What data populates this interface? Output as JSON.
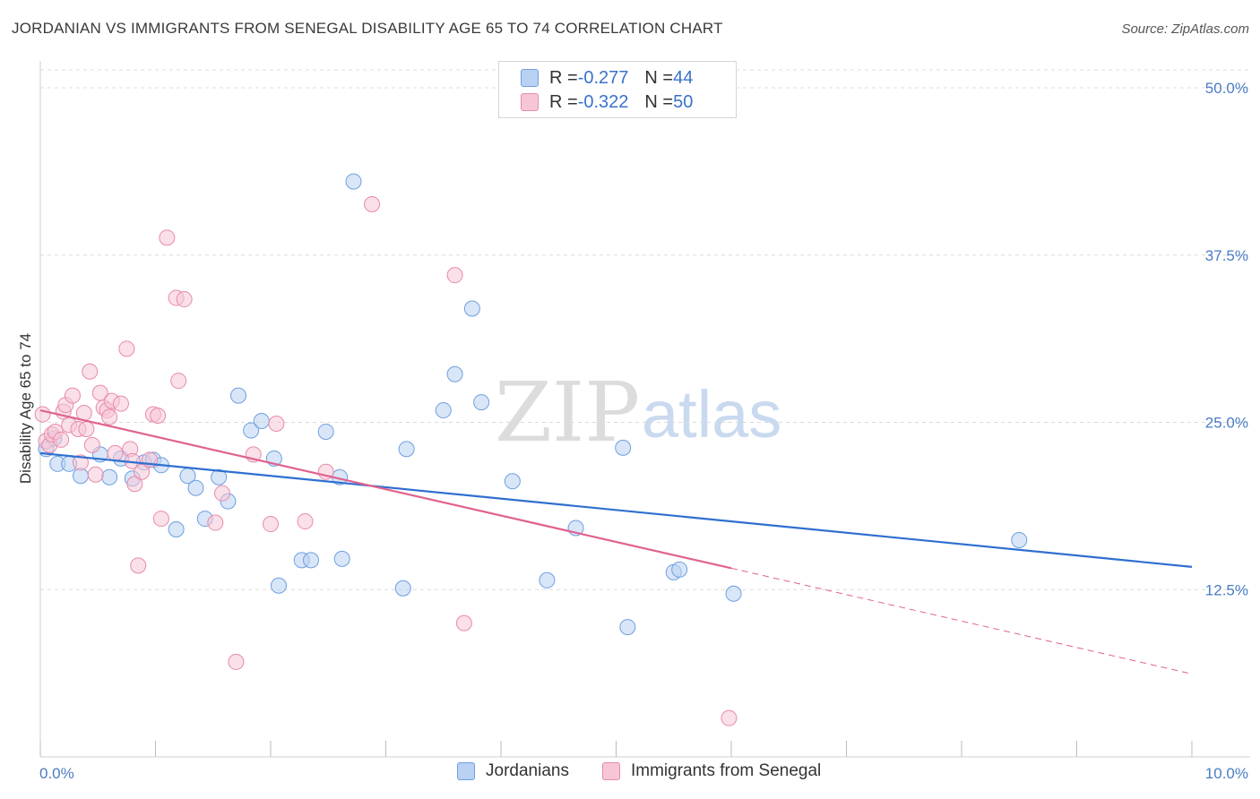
{
  "title": "JORDANIAN VS IMMIGRANTS FROM SENEGAL DISABILITY AGE 65 TO 74 CORRELATION CHART",
  "source": "Source: ZipAtlas.com",
  "watermark": {
    "part1": "ZIP",
    "part2": "atlas"
  },
  "legend_top": [
    {
      "r_label": "R = ",
      "r_value": "-0.277",
      "n_label": "N = ",
      "n_value": "44"
    },
    {
      "r_label": "R = ",
      "r_value": "-0.322",
      "n_label": "N = ",
      "n_value": "50"
    }
  ],
  "chart_data": {
    "type": "scatter",
    "ylabel": "Disability Age 65 to 74",
    "xlim": [
      0,
      10
    ],
    "ylim": [
      0,
      50
    ],
    "x_tick_labels": [
      "0.0%",
      "10.0%"
    ],
    "y_ticks": [
      12.5,
      25.0,
      37.5,
      50.0
    ],
    "y_tick_labels": [
      "12.5%",
      "25.0%",
      "37.5%",
      "50.0%"
    ],
    "grid": true,
    "legend_position": "bottom",
    "series": [
      {
        "name": "Jordanians",
        "color": "#6e9fe0",
        "fill": "#b9d1f2",
        "line_color": "#2f6fd0",
        "trend": {
          "x": [
            0,
            10
          ],
          "y": [
            22.7,
            14.2
          ]
        },
        "points": [
          [
            0.05,
            23.0
          ],
          [
            0.12,
            23.8
          ],
          [
            0.15,
            21.9
          ],
          [
            0.25,
            21.9
          ],
          [
            0.35,
            21.0
          ],
          [
            0.52,
            22.6
          ],
          [
            0.6,
            20.9
          ],
          [
            0.7,
            22.3
          ],
          [
            0.8,
            20.8
          ],
          [
            0.9,
            22.0
          ],
          [
            0.98,
            22.2
          ],
          [
            1.05,
            21.8
          ],
          [
            1.18,
            17.0
          ],
          [
            1.28,
            21.0
          ],
          [
            1.35,
            20.1
          ],
          [
            1.43,
            17.8
          ],
          [
            1.55,
            20.9
          ],
          [
            1.63,
            19.1
          ],
          [
            1.72,
            27.0
          ],
          [
            1.83,
            24.4
          ],
          [
            1.92,
            25.1
          ],
          [
            2.03,
            22.3
          ],
          [
            2.07,
            12.8
          ],
          [
            2.27,
            14.7
          ],
          [
            2.35,
            14.7
          ],
          [
            2.48,
            24.3
          ],
          [
            2.6,
            20.9
          ],
          [
            2.62,
            14.8
          ],
          [
            2.72,
            43.0
          ],
          [
            3.15,
            12.6
          ],
          [
            3.18,
            23.0
          ],
          [
            3.5,
            25.9
          ],
          [
            3.6,
            28.6
          ],
          [
            3.75,
            33.5
          ],
          [
            3.83,
            26.5
          ],
          [
            4.1,
            20.6
          ],
          [
            4.4,
            13.2
          ],
          [
            4.65,
            17.1
          ],
          [
            5.06,
            23.1
          ],
          [
            5.1,
            9.7
          ],
          [
            5.5,
            13.8
          ],
          [
            5.55,
            14.0
          ],
          [
            6.02,
            12.2
          ],
          [
            8.5,
            16.2
          ]
        ]
      },
      {
        "name": "Immigrants from Senegal",
        "color": "#e88aaa",
        "fill": "#f6c6d6",
        "line_color": "#e0628f",
        "trend": {
          "x": [
            0,
            6.0
          ],
          "y": [
            25.9,
            14.1
          ]
        },
        "trend_dashed": {
          "x": [
            6.0,
            10
          ],
          "y": [
            14.1,
            6.2
          ]
        },
        "points": [
          [
            0.02,
            25.6
          ],
          [
            0.05,
            23.6
          ],
          [
            0.08,
            23.3
          ],
          [
            0.1,
            24.1
          ],
          [
            0.13,
            24.3
          ],
          [
            0.18,
            23.7
          ],
          [
            0.2,
            25.8
          ],
          [
            0.22,
            26.3
          ],
          [
            0.25,
            24.8
          ],
          [
            0.28,
            27.0
          ],
          [
            0.33,
            24.5
          ],
          [
            0.35,
            22.0
          ],
          [
            0.38,
            25.7
          ],
          [
            0.4,
            24.5
          ],
          [
            0.43,
            28.8
          ],
          [
            0.45,
            23.3
          ],
          [
            0.48,
            21.1
          ],
          [
            0.52,
            27.2
          ],
          [
            0.55,
            26.1
          ],
          [
            0.58,
            25.9
          ],
          [
            0.6,
            25.4
          ],
          [
            0.62,
            26.6
          ],
          [
            0.65,
            22.7
          ],
          [
            0.7,
            26.4
          ],
          [
            0.75,
            30.5
          ],
          [
            0.78,
            23.0
          ],
          [
            0.8,
            22.1
          ],
          [
            0.82,
            20.4
          ],
          [
            0.85,
            14.3
          ],
          [
            0.88,
            21.3
          ],
          [
            0.95,
            22.2
          ],
          [
            0.98,
            25.6
          ],
          [
            1.02,
            25.5
          ],
          [
            1.05,
            17.8
          ],
          [
            1.1,
            38.8
          ],
          [
            1.18,
            34.3
          ],
          [
            1.2,
            28.1
          ],
          [
            1.25,
            34.2
          ],
          [
            1.52,
            17.5
          ],
          [
            1.58,
            19.7
          ],
          [
            1.7,
            7.1
          ],
          [
            1.85,
            22.6
          ],
          [
            2.0,
            17.4
          ],
          [
            2.05,
            24.9
          ],
          [
            2.3,
            17.6
          ],
          [
            2.48,
            21.3
          ],
          [
            2.88,
            41.3
          ],
          [
            3.6,
            36.0
          ],
          [
            3.68,
            10.0
          ],
          [
            5.98,
            2.9
          ]
        ]
      }
    ]
  }
}
